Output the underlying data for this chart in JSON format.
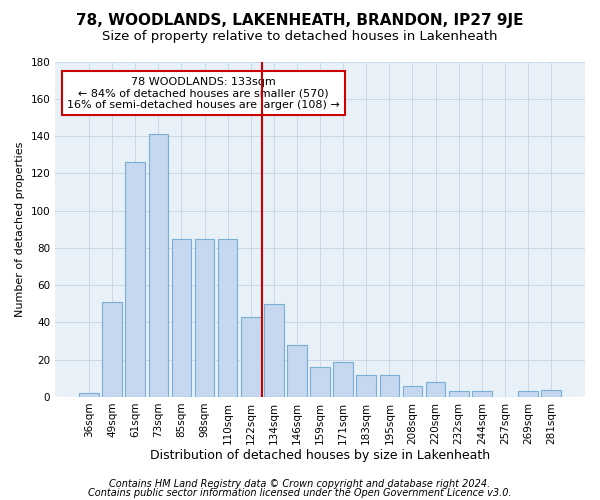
{
  "title": "78, WOODLANDS, LAKENHEATH, BRANDON, IP27 9JE",
  "subtitle": "Size of property relative to detached houses in Lakenheath",
  "xlabel": "Distribution of detached houses by size in Lakenheath",
  "ylabel": "Number of detached properties",
  "categories": [
    "36sqm",
    "49sqm",
    "61sqm",
    "73sqm",
    "85sqm",
    "98sqm",
    "110sqm",
    "122sqm",
    "134sqm",
    "146sqm",
    "159sqm",
    "171sqm",
    "183sqm",
    "195sqm",
    "208sqm",
    "220sqm",
    "232sqm",
    "244sqm",
    "257sqm",
    "269sqm",
    "281sqm"
  ],
  "values": [
    2,
    51,
    126,
    141,
    85,
    85,
    85,
    43,
    50,
    28,
    16,
    19,
    12,
    12,
    6,
    8,
    3,
    3,
    0,
    3,
    4
  ],
  "bar_color": "#c5d8ef",
  "bar_edge_color": "#7aafd4",
  "grid_color": "#c8d8e8",
  "background_color": "#e8f0f8",
  "vline_color": "#cc0000",
  "vline_x_index": 8,
  "annotation_text": "78 WOODLANDS: 133sqm\n← 84% of detached houses are smaller (570)\n16% of semi-detached houses are larger (108) →",
  "annotation_box_edge": "#cc0000",
  "ylim": [
    0,
    180
  ],
  "yticks": [
    0,
    20,
    40,
    60,
    80,
    100,
    120,
    140,
    160,
    180
  ],
  "footer1": "Contains HM Land Registry data © Crown copyright and database right 2024.",
  "footer2": "Contains public sector information licensed under the Open Government Licence v3.0.",
  "title_fontsize": 11,
  "subtitle_fontsize": 9.5,
  "xlabel_fontsize": 9,
  "ylabel_fontsize": 8,
  "tick_fontsize": 7.5,
  "annot_fontsize": 8,
  "footer_fontsize": 7
}
